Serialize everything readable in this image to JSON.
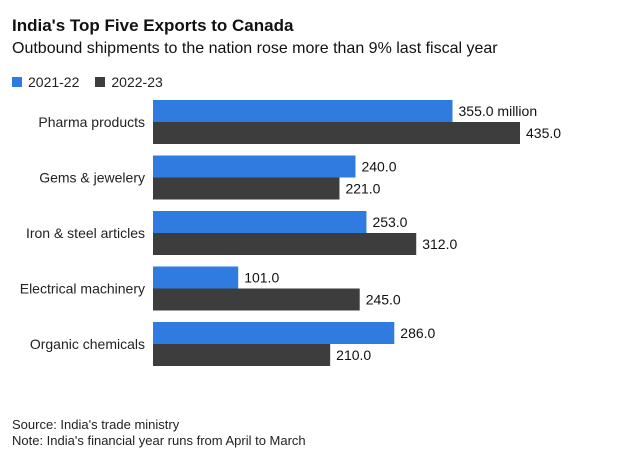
{
  "title": "India's Top Five Exports to Canada",
  "subtitle": "Outbound shipments to the nation rose more than 9% last fiscal year",
  "legend": [
    {
      "label": "2021-22",
      "color": "#2f7be0"
    },
    {
      "label": "2022-23",
      "color": "#3d3d3d"
    }
  ],
  "footer": {
    "source": "Source: India's trade ministry",
    "note": "Note: India's financial year runs from April to March"
  },
  "chart_data": {
    "type": "bar",
    "orientation": "horizontal",
    "categories": [
      "Pharma products",
      "Gems & jewelery",
      "Iron & steel articles",
      "Electrical machinery",
      "Organic chemicals"
    ],
    "series": [
      {
        "name": "2021-22",
        "color": "#2f7be0",
        "values": [
          355.0,
          240.0,
          253.0,
          101.0,
          286.0
        ]
      },
      {
        "name": "2022-23",
        "color": "#3d3d3d",
        "values": [
          435.0,
          221.0,
          312.0,
          245.0,
          210.0
        ]
      }
    ],
    "data_labels": [
      [
        "355.0 million",
        "240.0",
        "253.0",
        "101.0",
        "286.0"
      ],
      [
        "435.0",
        "221.0",
        "312.0",
        "245.0",
        "210.0"
      ]
    ],
    "xlim": [
      0,
      435
    ],
    "grid": false,
    "legend_position": "top-left"
  }
}
